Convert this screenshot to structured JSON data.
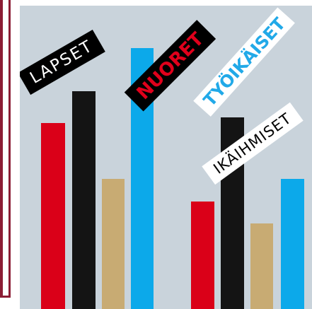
{
  "labels": {
    "lapset": "LAPSET",
    "nuoret": "NUORET",
    "tyoikaiset": "TYÖIKÄISET",
    "ikaihmiset": "IKÄIHMISET"
  },
  "colors": {
    "panel_background": "#c9d3db",
    "frame": "#8c1d35",
    "red": "#da0018",
    "black": "#141414",
    "tan": "#c8ab73",
    "blue": "#0ca9ea"
  }
}
